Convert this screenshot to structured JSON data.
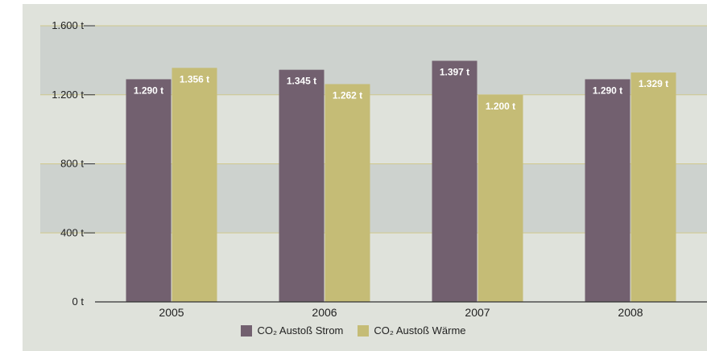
{
  "chart_data": {
    "type": "bar",
    "categories": [
      "2005",
      "2006",
      "2007",
      "2008"
    ],
    "y_ticks": [
      "0 t",
      "400 t",
      "800 t",
      "1.200 t",
      "1.600 t"
    ],
    "ylim": [
      0,
      1600
    ],
    "grid": "bands",
    "legend_placement": "bottom-center",
    "series": [
      {
        "name": "CO₂ Austoß Strom",
        "color": "#72606f",
        "values": [
          1290,
          1345,
          1397,
          1290
        ],
        "labels": [
          "1.290 t",
          "1.345 t",
          "1.397 t",
          "1.290 t"
        ]
      },
      {
        "name": "CO₂ Austoß Wärme",
        "color": "#c5bc76",
        "values": [
          1356,
          1262,
          1200,
          1329
        ],
        "labels": [
          "1.356 t",
          "1.262 t",
          "1.200 t",
          "1.329 t"
        ]
      }
    ],
    "colors": {
      "background": "#dfe2db",
      "band": "#cdd2ce",
      "gridline": "#cfc88d",
      "axis": "#333333"
    }
  }
}
